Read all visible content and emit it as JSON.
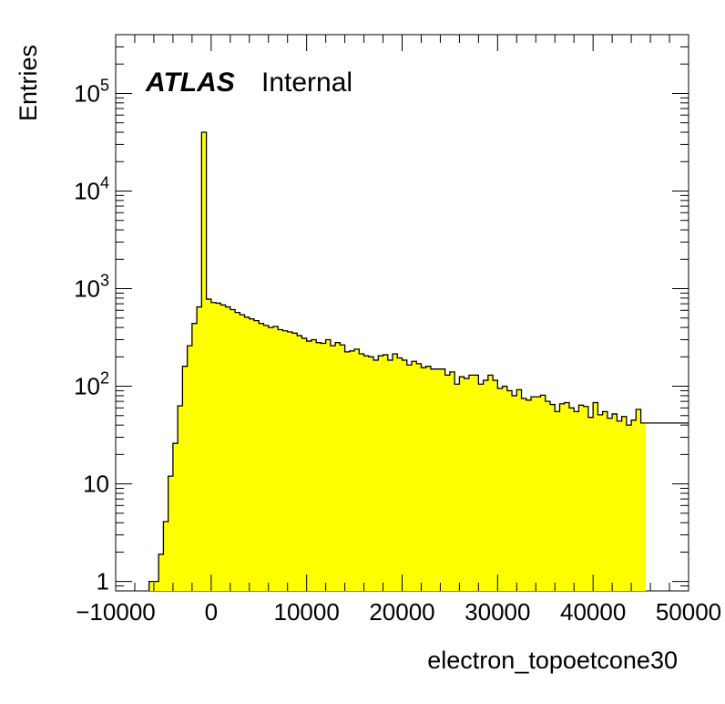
{
  "chart_data": {
    "type": "histogram",
    "xlabel": "electron_topoetcone30",
    "ylabel": "Entries",
    "xlim": [
      -10000,
      50000
    ],
    "ylim": [
      0.8,
      400000
    ],
    "yscale": "log",
    "bin_width": 500,
    "x_start": -6500,
    "fill_color": "#ffff00",
    "line_color": "#000000",
    "annotation": {
      "atlas": "ATLAS",
      "label": "Internal"
    },
    "x_ticks": [
      {
        "v": -10000,
        "label": "−10000"
      },
      {
        "v": 0,
        "label": "0"
      },
      {
        "v": 10000,
        "label": "10000"
      },
      {
        "v": 20000,
        "label": "20000"
      },
      {
        "v": 30000,
        "label": "30000"
      },
      {
        "v": 40000,
        "label": "40000"
      },
      {
        "v": 50000,
        "label": "50000"
      }
    ],
    "y_ticks": [
      {
        "v": 1,
        "base": "1",
        "exp": ""
      },
      {
        "v": 10,
        "base": "10",
        "exp": ""
      },
      {
        "v": 100,
        "base": "10",
        "exp": "2"
      },
      {
        "v": 1000,
        "base": "10",
        "exp": "3"
      },
      {
        "v": 10000,
        "base": "10",
        "exp": "4"
      },
      {
        "v": 100000,
        "base": "10",
        "exp": "5"
      }
    ],
    "values": [
      1,
      1,
      1.9,
      4.1,
      12,
      26,
      63,
      160,
      260,
      440,
      650,
      40000,
      780,
      720,
      710,
      680,
      650,
      610,
      570,
      540,
      510,
      490,
      470,
      440,
      420,
      400,
      410,
      380,
      370,
      360,
      350,
      330,
      310,
      290,
      300,
      280,
      275,
      300,
      260,
      280,
      265,
      225,
      230,
      240,
      215,
      205,
      200,
      185,
      205,
      210,
      185,
      215,
      195,
      185,
      165,
      180,
      170,
      155,
      160,
      150,
      150,
      150,
      130,
      140,
      105,
      125,
      120,
      130,
      130,
      105,
      115,
      130,
      115,
      95,
      100,
      90,
      80,
      92,
      75,
      72,
      78,
      78,
      81,
      70,
      65,
      55,
      66,
      68,
      60,
      55,
      64,
      62,
      48,
      68,
      51,
      55,
      47,
      52,
      44,
      49,
      40,
      45,
      58,
      42
    ]
  }
}
